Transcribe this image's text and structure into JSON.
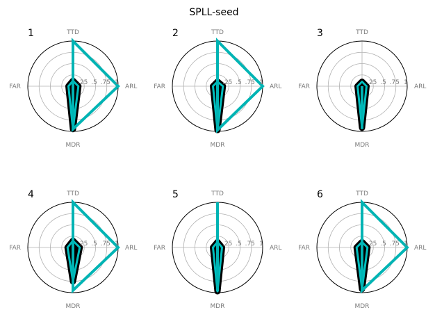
{
  "figure": {
    "title": "SPLL-seed"
  },
  "colors": {
    "envelope": "#00b4b4",
    "inner_dark": "#000000",
    "inner_cyan": "#00e0e0",
    "grid": "#b0b0b0",
    "outer_ring": "#000000",
    "label": "#7a7a7a"
  },
  "chart_data": [
    {
      "type": "radar",
      "panel_label": "1",
      "axes": [
        "TTD",
        "ARL",
        "MDR",
        "FAR"
      ],
      "radial_ticks": [
        ".25",
        ".5",
        ".75",
        "1"
      ],
      "rlim": [
        0,
        1
      ],
      "envelope": {
        "TTD": 1.0,
        "ARL": 1.0,
        "MDR": 0.95,
        "FAR": 0.0
      },
      "inner_series": {
        "TTD": 0.12,
        "ARL": 0.12,
        "MDR": 0.95,
        "FAR": 0.1
      }
    },
    {
      "type": "radar",
      "panel_label": "2",
      "axes": [
        "TTD",
        "ARL",
        "MDR",
        "FAR"
      ],
      "radial_ticks": [
        ".25",
        ".5",
        ".75",
        "1"
      ],
      "rlim": [
        0,
        1
      ],
      "envelope": {
        "TTD": 1.0,
        "ARL": 1.0,
        "MDR": 0.97,
        "FAR": 0.0
      },
      "inner_series": {
        "TTD": 0.1,
        "ARL": 0.12,
        "MDR": 0.97,
        "FAR": 0.1
      }
    },
    {
      "type": "radar",
      "panel_label": "3",
      "axes": [
        "TTD",
        "ARL",
        "MDR",
        "FAR"
      ],
      "radial_ticks": [
        ".25",
        ".5",
        ".75",
        "1"
      ],
      "rlim": [
        0,
        1
      ],
      "envelope": {
        "TTD": 0.0,
        "ARL": 0.0,
        "MDR": 0.95,
        "FAR": 0.0
      },
      "inner_series": {
        "TTD": 0.1,
        "ARL": 0.1,
        "MDR": 0.92,
        "FAR": 0.1
      }
    },
    {
      "type": "radar",
      "panel_label": "4",
      "axes": [
        "TTD",
        "ARL",
        "MDR",
        "FAR"
      ],
      "radial_ticks": [
        ".25",
        ".5",
        ".75",
        "1"
      ],
      "rlim": [
        0,
        1
      ],
      "envelope": {
        "TTD": 1.0,
        "ARL": 1.0,
        "MDR": 0.95,
        "FAR": 0.0
      },
      "inner_series": {
        "TTD": 0.15,
        "ARL": 0.15,
        "MDR": 0.75,
        "FAR": 0.12
      }
    },
    {
      "type": "radar",
      "panel_label": "5",
      "axes": [
        "TTD",
        "ARL",
        "MDR",
        "FAR"
      ],
      "radial_ticks": [
        ".25",
        ".5",
        ".75",
        "1"
      ],
      "rlim": [
        0,
        1
      ],
      "envelope": {
        "TTD": 1.0,
        "ARL": 0.0,
        "MDR": 0.97,
        "FAR": 0.0
      },
      "inner_series": {
        "TTD": 0.12,
        "ARL": 0.1,
        "MDR": 0.97,
        "FAR": 0.1
      }
    },
    {
      "type": "radar",
      "panel_label": "6",
      "axes": [
        "TTD",
        "ARL",
        "MDR",
        "FAR"
      ],
      "radial_ticks": [
        ".25",
        ".5",
        ".75",
        "1"
      ],
      "rlim": [
        0,
        1
      ],
      "envelope": {
        "TTD": 1.0,
        "ARL": 1.0,
        "MDR": 0.95,
        "FAR": 0.0
      },
      "inner_series": {
        "TTD": 0.12,
        "ARL": 0.12,
        "MDR": 0.92,
        "FAR": 0.12
      }
    }
  ]
}
